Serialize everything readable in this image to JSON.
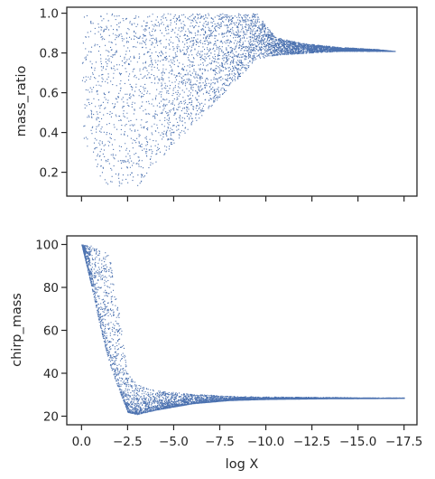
{
  "chart_data": [
    {
      "type": "scatter",
      "title": "",
      "xlabel": "",
      "ylabel": "mass_ratio",
      "x_ticks": [
        "0.0",
        "−2.5",
        "−5.0",
        "−7.5",
        "−10.0",
        "−12.5",
        "−15.0",
        "−17.5"
      ],
      "x_tick_labels_visible": false,
      "y_ticks": [
        "0.2",
        "0.4",
        "0.6",
        "0.8",
        "1.0"
      ],
      "xlim": [
        0.8,
        -18.2
      ],
      "ylim": [
        0.08,
        1.03
      ],
      "x_axis_inverted": true,
      "grid": false,
      "marker_color": "#4c72b0",
      "series_description": "dense point cloud: mass ratio spans 0.13–1.0 for log X between 0 and about −9.5; lower edge rises from 0.13 near log X ≈ −2 to ≈0.79 at −9.5; points converge to a narrow band at ≈0.80–0.82 extending to about −17",
      "envelope": {
        "log_x": [
          0.0,
          -1.0,
          -1.5,
          -2.0,
          -2.5,
          -3.0,
          -4.0,
          -5.0,
          -6.0,
          -7.0,
          -8.0,
          -9.0,
          -9.5,
          -10.5,
          -12.0,
          -14.0,
          -16.0,
          -17.0
        ],
        "q_lower": [
          0.38,
          0.18,
          0.13,
          0.13,
          0.15,
          0.13,
          0.24,
          0.34,
          0.44,
          0.53,
          0.63,
          0.72,
          0.77,
          0.79,
          0.8,
          0.81,
          0.81,
          0.81
        ],
        "q_upper": [
          1.0,
          1.0,
          1.0,
          1.0,
          1.0,
          1.0,
          1.0,
          1.0,
          1.0,
          1.0,
          1.0,
          1.0,
          1.0,
          0.88,
          0.85,
          0.83,
          0.82,
          0.81
        ]
      }
    },
    {
      "type": "scatter",
      "title": "",
      "xlabel": "log X",
      "ylabel": "chirp_mass",
      "x_ticks": [
        "0.0",
        "−2.5",
        "−5.0",
        "−7.5",
        "−10.0",
        "−12.5",
        "−15.0",
        "−17.5"
      ],
      "y_ticks": [
        "20",
        "40",
        "60",
        "80",
        "100"
      ],
      "xlim": [
        0.8,
        -18.2
      ],
      "ylim": [
        16,
        104
      ],
      "x_axis_inverted": true,
      "grid": false,
      "marker_color": "#4c72b0",
      "series_description": "chirp mass falls steeply from ≈100 near log X = 0 to ≈30 by log X ≈ −2.5, then flattens into a thin horizontal band at ≈28–29 extending to about −17.5; a small branch near 21–27 spans log X −2 to −7",
      "envelope": {
        "log_x": [
          0.0,
          -0.5,
          -1.0,
          -1.5,
          -2.0,
          -2.5,
          -3.0,
          -4.0,
          -6.0,
          -8.0,
          -10.0,
          -13.0,
          -15.0,
          -17.5
        ],
        "m_lower": [
          100,
          82,
          62,
          45,
          33,
          22,
          21,
          23,
          26,
          27.5,
          28,
          28.3,
          28.4,
          28.5
        ],
        "m_upper": [
          100,
          100,
          98,
          96,
          70,
          40,
          35,
          32,
          30.5,
          29.5,
          29.2,
          29.0,
          28.8,
          28.7
        ]
      }
    }
  ]
}
